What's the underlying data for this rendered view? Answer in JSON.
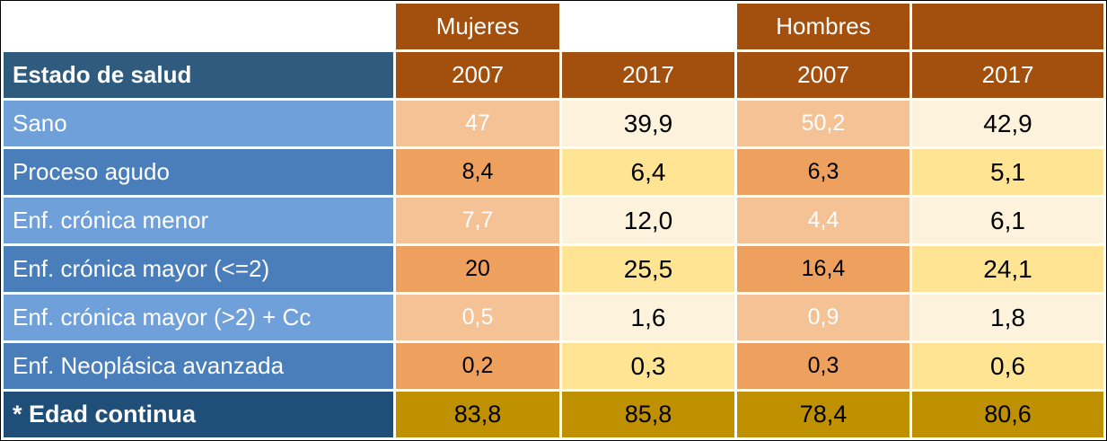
{
  "header": {
    "women_label": "Mujeres",
    "men_label": "Hombres",
    "row_header_label": "Estado de salud",
    "year_cols": [
      "2007",
      "2017",
      "2007",
      "2017"
    ]
  },
  "rows": [
    {
      "label": "Sano",
      "values": [
        "47",
        "39,9",
        "50,2",
        "42,9"
      ]
    },
    {
      "label": "Proceso agudo",
      "values": [
        "8,4",
        "6,4",
        "6,3",
        "5,1"
      ]
    },
    {
      "label": "Enf. crónica menor",
      "values": [
        "7,7",
        "12,0",
        "4,4",
        "6,1"
      ]
    },
    {
      "label": "Enf. crónica mayor (<=2)",
      "values": [
        "20",
        "25,5",
        "16,4",
        "24,1"
      ]
    },
    {
      "label": "Enf. crónica mayor (>2) + Cc",
      "values": [
        "0,5",
        "1,6",
        "0,9",
        "1,8"
      ]
    },
    {
      "label": "Enf. Neoplásica avanzada",
      "values": [
        "0,2",
        "0,3",
        "0,3",
        "0,6"
      ]
    }
  ],
  "footer": {
    "label": "* Edad continua",
    "values": [
      "83,8",
      "85,8",
      "78,4",
      "80,6"
    ]
  },
  "colors": {
    "header_brown": "#A3500F",
    "row_header_blue": "#2F5B7E",
    "label_blue_light": "#6FA0D9",
    "label_blue_dark": "#4A7EBA",
    "cell_orange_light": "#F4C294",
    "cell_orange_dark": "#EEA05E",
    "cell_cream": "#FDF2DC",
    "cell_yellow": "#FFE593",
    "footer_gold": "#BF9000",
    "footer_navy": "#1F4E79"
  },
  "chart_data": {
    "type": "table",
    "title": "",
    "column_groups": [
      "Mujeres",
      "Hombres"
    ],
    "columns": [
      "Estado de salud",
      "Mujeres 2007",
      "Mujeres 2017",
      "Hombres 2007",
      "Hombres 2017"
    ],
    "rows": [
      [
        "Sano",
        47,
        39.9,
        50.2,
        42.9
      ],
      [
        "Proceso agudo",
        8.4,
        6.4,
        6.3,
        5.1
      ],
      [
        "Enf. crónica menor",
        7.7,
        12.0,
        4.4,
        6.1
      ],
      [
        "Enf. crónica mayor (<=2)",
        20,
        25.5,
        16.4,
        24.1
      ],
      [
        "Enf. crónica mayor (>2) + Cc",
        0.5,
        1.6,
        0.9,
        1.8
      ],
      [
        "Enf. Neoplásica avanzada",
        0.2,
        0.3,
        0.3,
        0.6
      ],
      [
        "* Edad continua",
        83.8,
        85.8,
        78.4,
        80.6
      ]
    ]
  }
}
